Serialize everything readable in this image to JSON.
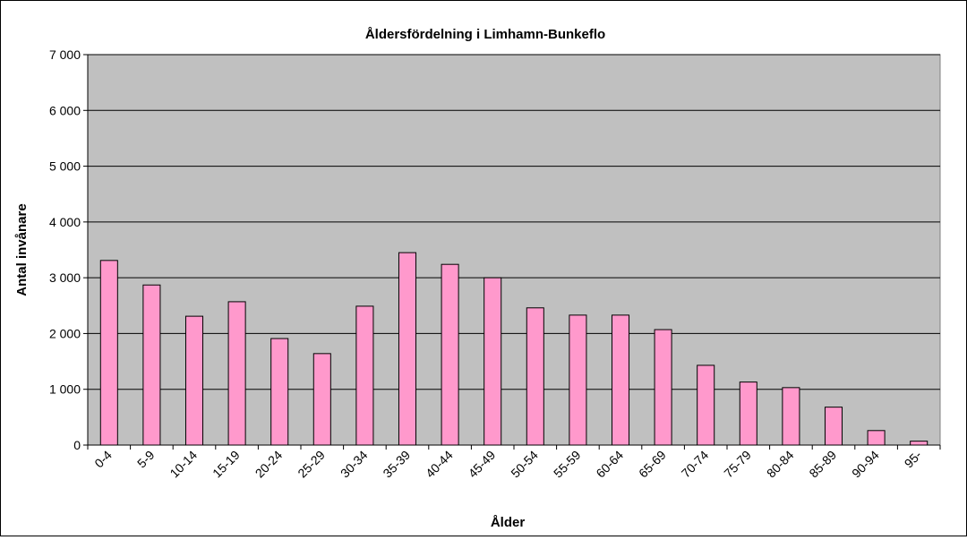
{
  "chart_data": {
    "type": "bar",
    "title": "Åldersfördelning i Limhamn-Bunkeflo",
    "xlabel": "Ålder",
    "ylabel": "Antal invånare",
    "categories": [
      "0-4",
      "5-9",
      "10-14",
      "15-19",
      "20-24",
      "25-29",
      "30-34",
      "35-39",
      "40-44",
      "45-49",
      "50-54",
      "55-59",
      "60-64",
      "65-69",
      "70-74",
      "75-79",
      "80-84",
      "85-89",
      "90-94",
      "95-"
    ],
    "values": [
      3310,
      2870,
      2310,
      2570,
      1910,
      1640,
      2490,
      3450,
      3240,
      3000,
      2460,
      2330,
      2330,
      2070,
      1430,
      1130,
      1030,
      680,
      260,
      70
    ],
    "y_ticks": [
      0,
      1000,
      2000,
      3000,
      4000,
      5000,
      6000,
      7000
    ],
    "y_tick_labels": [
      "0",
      "1 000",
      "2 000",
      "3 000",
      "4 000",
      "5 000",
      "6 000",
      "7 000"
    ],
    "ylim": [
      0,
      7000
    ],
    "grid": true,
    "legend": "none",
    "colors": {
      "bar_fill": "#ff99cc",
      "bar_stroke": "#000000",
      "plot_background": "#c0c0c0",
      "gridline": "#000000"
    }
  }
}
